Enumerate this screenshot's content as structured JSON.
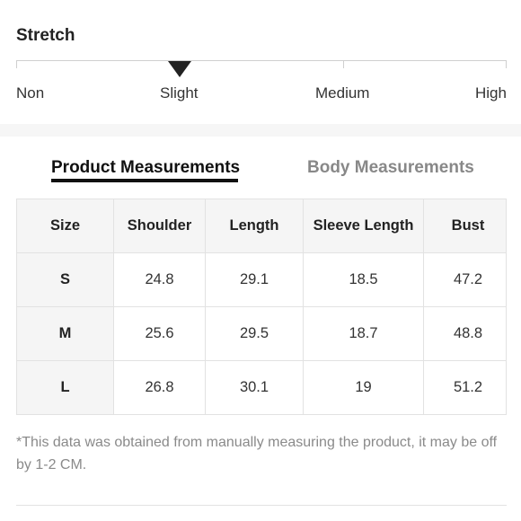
{
  "stretch": {
    "title": "Stretch",
    "levels": [
      "Non",
      "Slight",
      "Medium",
      "High"
    ],
    "selected": "Slight"
  },
  "tabs": [
    {
      "label": "Product Measurements",
      "active": true
    },
    {
      "label": "Body Measurements",
      "active": false
    }
  ],
  "table": {
    "columns": [
      "Size",
      "Shoulder",
      "Length",
      "Sleeve Length",
      "Bust"
    ],
    "rows": [
      [
        "S",
        "24.8",
        "29.1",
        "18.5",
        "47.2"
      ],
      [
        "M",
        "25.6",
        "29.5",
        "18.7",
        "48.8"
      ],
      [
        "L",
        "26.8",
        "30.1",
        "19",
        "51.2"
      ]
    ]
  },
  "note": "*This data was obtained from manually measuring the product, it may be off by 1-2 CM."
}
